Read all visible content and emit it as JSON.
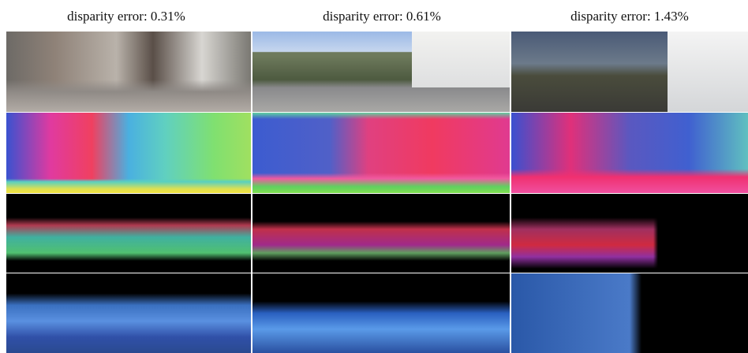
{
  "columns": [
    {
      "caption": "disparity error: 0.31%"
    },
    {
      "caption": "disparity error: 0.61%"
    },
    {
      "caption": "disparity error: 1.43%"
    }
  ]
}
